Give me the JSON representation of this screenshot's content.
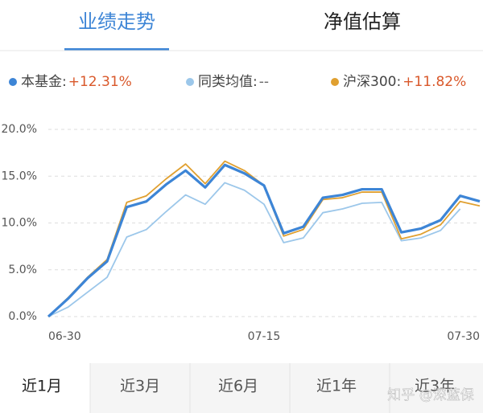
{
  "tabs": [
    "业绩走势",
    "净值估算"
  ],
  "periods": [
    "近1月",
    "近3月",
    "近6月",
    "近1年",
    "近3年"
  ],
  "watermark": "知乎 @深蓝保",
  "chart_data": {
    "type": "line",
    "categories": [
      "06-30",
      null,
      null,
      null,
      null,
      null,
      null,
      null,
      null,
      null,
      null,
      "07-15",
      null,
      null,
      null,
      null,
      null,
      null,
      null,
      null,
      null,
      null,
      "07-30"
    ],
    "series": [
      {
        "name": "本基金:",
        "summary": "+12.31%",
        "color": "#3d85d6",
        "values": [
          0,
          1.9,
          4.1,
          5.9,
          11.7,
          12.3,
          14.1,
          15.6,
          13.8,
          16.2,
          15.3,
          14.0,
          8.9,
          9.6,
          12.7,
          13.0,
          13.6,
          13.6,
          9.0,
          9.4,
          10.3,
          12.9,
          12.31
        ]
      },
      {
        "name": "同类均值:",
        "summary": "--",
        "color": "#9cc7ea",
        "values": [
          0,
          1.0,
          2.6,
          4.2,
          8.5,
          9.3,
          11.2,
          13.0,
          12.0,
          14.3,
          13.5,
          12.0,
          7.9,
          8.4,
          11.1,
          11.5,
          12.1,
          12.2,
          8.1,
          8.4,
          9.2,
          11.5,
          null
        ]
      },
      {
        "name": "沪深300:",
        "summary": "+11.82%",
        "color": "#e0a030",
        "values": [
          0,
          2.0,
          4.2,
          6.1,
          12.2,
          12.9,
          14.7,
          16.3,
          14.2,
          16.6,
          15.6,
          14.0,
          8.6,
          9.3,
          12.5,
          12.7,
          13.3,
          13.3,
          8.3,
          8.8,
          9.8,
          12.3,
          11.82
        ]
      }
    ],
    "ylim": [
      0,
      20
    ],
    "yticks": [
      {
        "value": 0,
        "label": "0.0%"
      },
      {
        "value": 5,
        "label": "5.0%"
      },
      {
        "value": 10,
        "label": "10.0%"
      },
      {
        "value": 15,
        "label": "15.0%"
      },
      {
        "value": 20,
        "label": "20.0%"
      }
    ],
    "grid": true
  }
}
